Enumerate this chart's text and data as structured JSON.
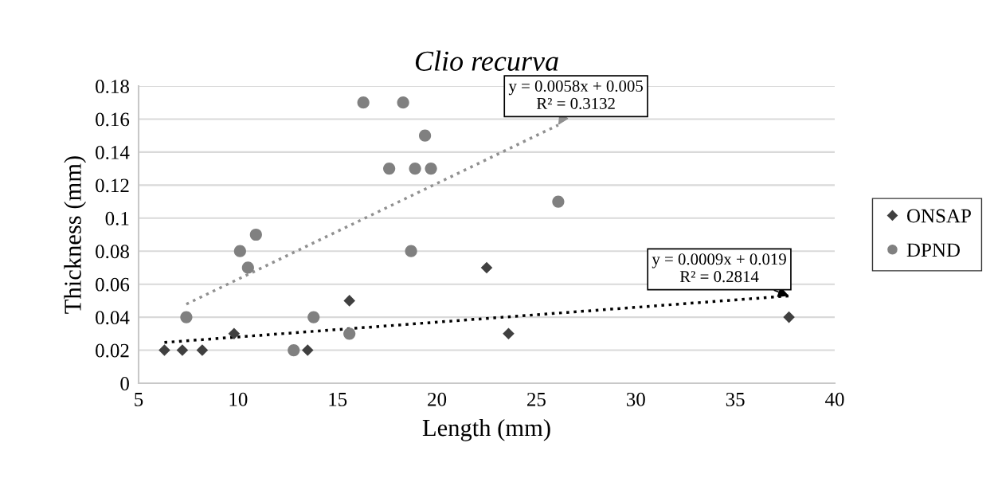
{
  "chart_data": {
    "type": "scatter",
    "title": "Clio recurva",
    "xlabel": "Length (mm)",
    "ylabel": "Thickness (mm)",
    "xlim": [
      5,
      40
    ],
    "xticks": [
      5,
      10,
      15,
      20,
      25,
      30,
      35,
      40
    ],
    "ylim": [
      0,
      0.18
    ],
    "yticks": [
      0,
      0.02,
      0.04,
      0.06,
      0.08,
      0.1,
      0.12,
      0.14,
      0.16,
      0.18
    ],
    "grid": "y",
    "legend": "right",
    "series": [
      {
        "name": "ONSAP",
        "marker": "diamond",
        "color": "#404040",
        "x": [
          6.3,
          7.2,
          8.2,
          9.8,
          13.5,
          15.6,
          22.5,
          23.6,
          37.7
        ],
        "values": [
          0.02,
          0.02,
          0.02,
          0.03,
          0.02,
          0.05,
          0.07,
          0.03,
          0.04
        ]
      },
      {
        "name": "DPND",
        "marker": "circle",
        "color": "#808080",
        "x": [
          7.4,
          10.1,
          10.5,
          10.9,
          12.8,
          13.8,
          15.6,
          16.3,
          17.6,
          18.3,
          18.7,
          18.9,
          19.4,
          19.7,
          26.1
        ],
        "values": [
          0.04,
          0.08,
          0.07,
          0.09,
          0.02,
          0.04,
          0.03,
          0.17,
          0.13,
          0.17,
          0.08,
          0.13,
          0.15,
          0.13,
          0.11
        ]
      },
      {
        "type": "line",
        "marker": "none",
        "line_style": "dotted",
        "color": "#000000",
        "x": [
          6.3,
          37.7
        ],
        "values": [
          0.0247,
          0.0529
        ]
      },
      {
        "type": "line",
        "marker": "none",
        "line_style": "dotted",
        "color": "#909090",
        "x": [
          7.4,
          26.1
        ],
        "values": [
          0.0479,
          0.1564
        ]
      }
    ],
    "annotations": [
      {
        "text": "y = 0.0058x + 0.005\nR² = 0.3132",
        "x": 26.1,
        "y": 0.1564
      },
      {
        "text": "y = 0.0009x + 0.019\nR² = 0.2814",
        "x": 37.7,
        "y": 0.0529
      }
    ]
  }
}
